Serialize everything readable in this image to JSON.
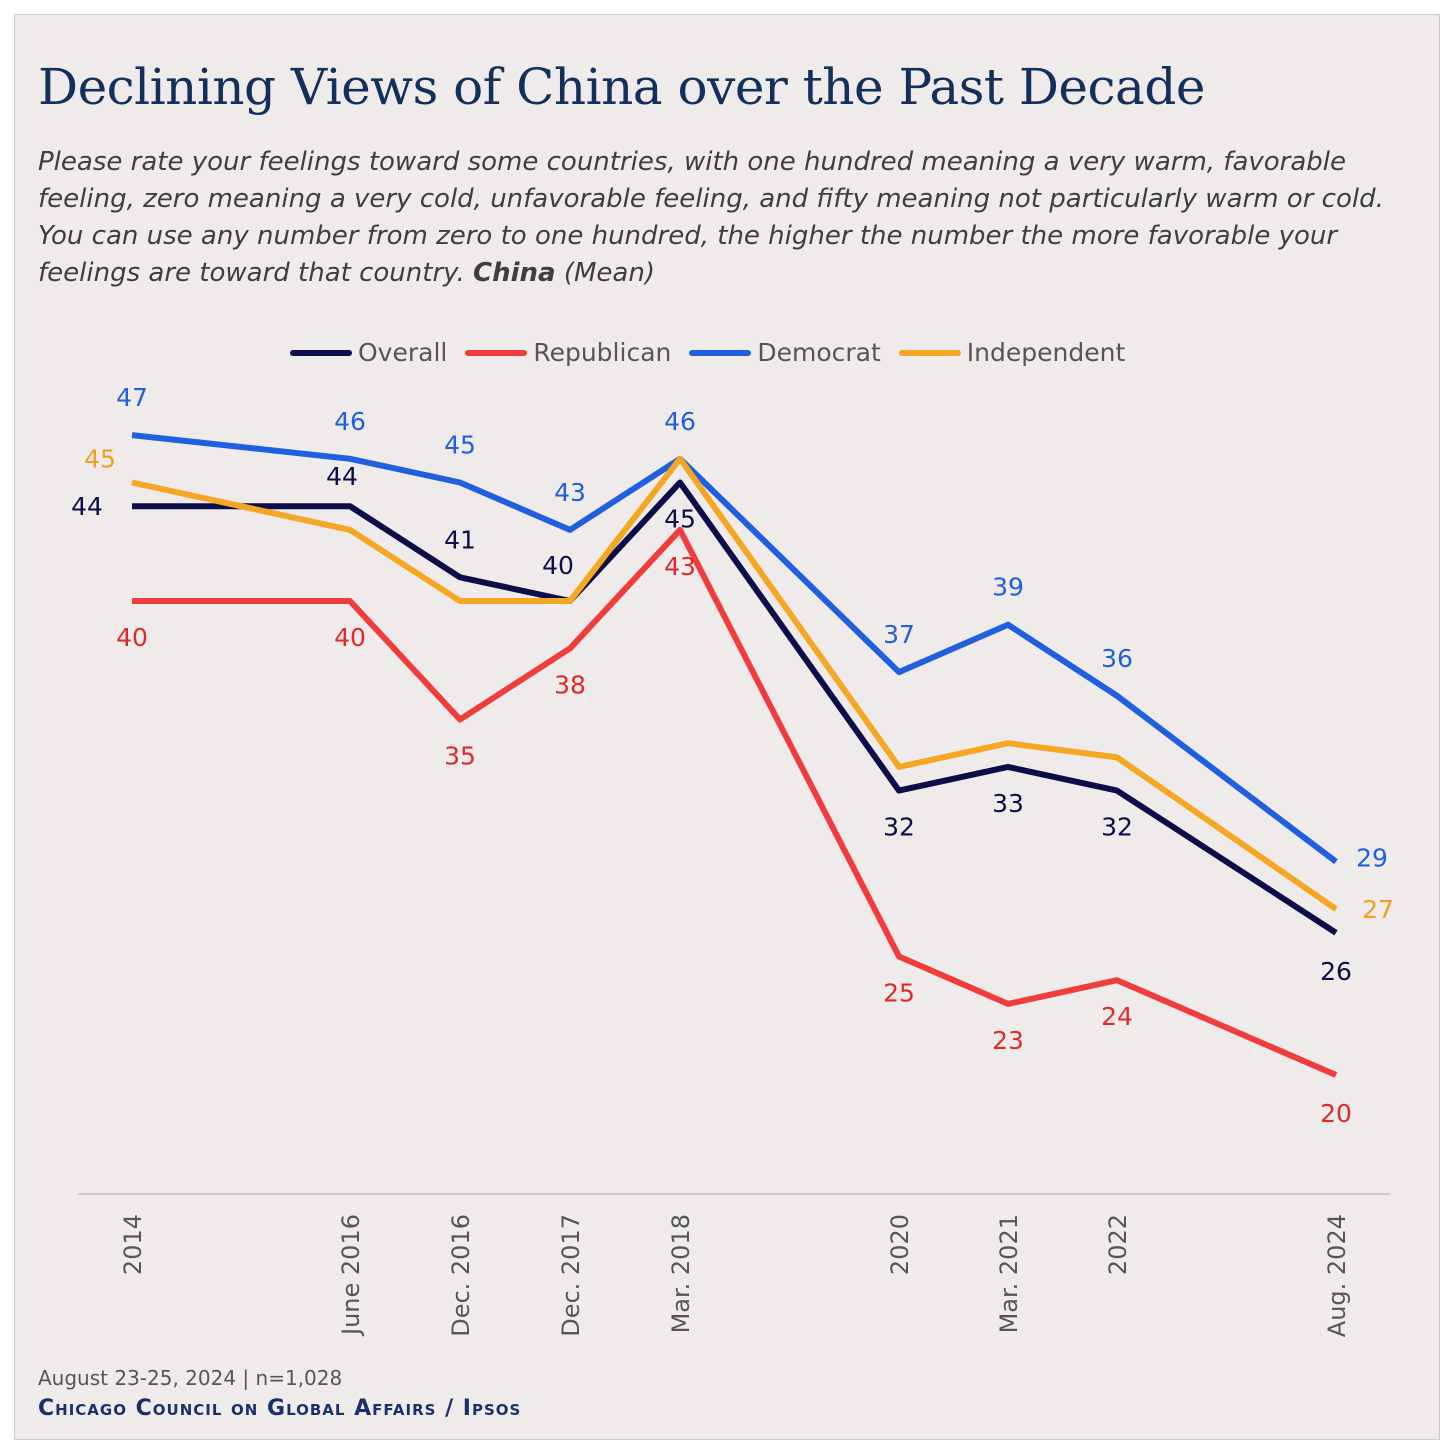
{
  "header": {
    "title": "Declining Views of China over the Past Decade",
    "subtitle_main": "Please rate your feelings toward some countries, with one hundred meaning a very warm, favorable feeling, zero meaning a very cold, unfavorable feeling, and fifty meaning not particularly warm or cold. You can use any number from zero to one hundred, the higher the number the more favorable your feelings are toward that country.",
    "subtitle_bold": "China",
    "subtitle_tail": "(Mean)"
  },
  "footer": {
    "date": "August 23-25, 2024 | n=1,028",
    "org": "Chicago Council on Global Affairs / Ipsos"
  },
  "chart_data": {
    "type": "line",
    "x": [
      "2014",
      "June 2016",
      "Dec. 2016",
      "Dec. 2017",
      "Mar. 2018",
      "2020",
      "Mar. 2021",
      "2022",
      "Aug. 2024"
    ],
    "series": [
      {
        "name": "Overall",
        "color": "#0d0d4a",
        "values": [
          44,
          44,
          41,
          40,
          45,
          32,
          33,
          32,
          26
        ]
      },
      {
        "name": "Republican",
        "color": "#f03c3c",
        "values": [
          40,
          40,
          35,
          38,
          43,
          25,
          23,
          24,
          20
        ]
      },
      {
        "name": "Democrat",
        "color": "#1f5fe0",
        "values": [
          47,
          46,
          45,
          43,
          46,
          37,
          39,
          36,
          29
        ]
      },
      {
        "name": "Independent",
        "color": "#f5a623",
        "values": [
          45,
          43,
          40,
          40,
          46,
          33,
          34,
          33.4,
          27
        ]
      }
    ],
    "value_labels": {
      "Overall": [
        "44",
        "44",
        "41",
        "40",
        "45",
        "32",
        "33",
        "32",
        "26"
      ],
      "Republican": [
        "40",
        "40",
        "35",
        "38",
        "43",
        "25",
        "23",
        "24",
        "20"
      ],
      "Democrat": [
        "47",
        "46",
        "45",
        "43",
        "46",
        "37",
        "39",
        "36",
        "29"
      ],
      "Independent": [
        "45",
        "",
        "",
        "",
        "",
        "",
        "",
        "",
        "27"
      ]
    },
    "legend_position": "top",
    "grid": false
  }
}
